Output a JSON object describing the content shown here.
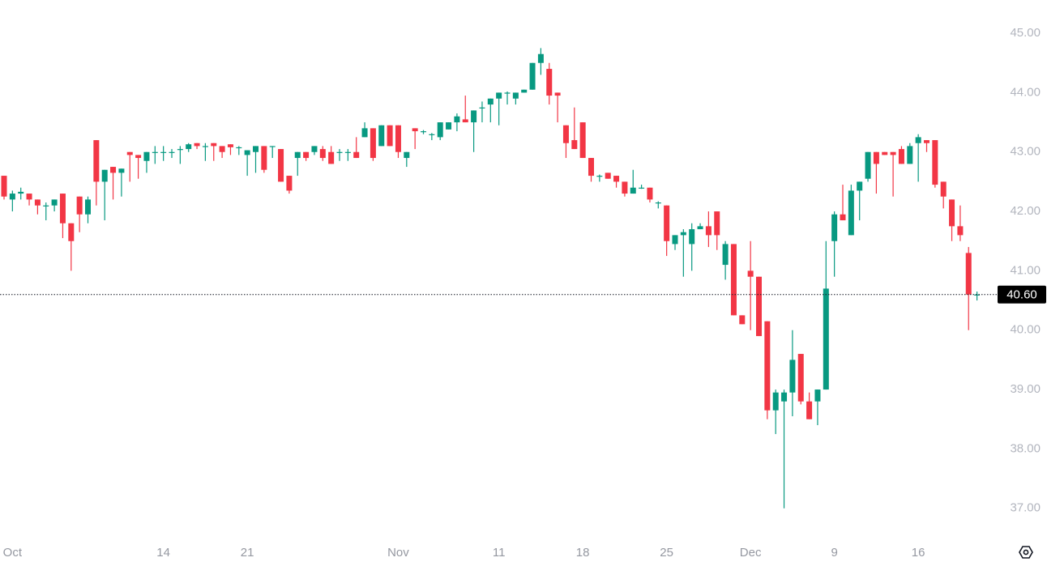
{
  "chart_data": {
    "type": "candlestick",
    "up_color": "#089981",
    "down_color": "#f23645",
    "categories": [
      null,
      "Oct",
      null,
      null,
      null,
      null,
      null,
      null,
      null,
      null,
      null,
      null,
      null,
      null,
      null,
      null,
      null,
      null,
      null,
      "14",
      null,
      null,
      null,
      null,
      null,
      null,
      null,
      null,
      null,
      "21",
      null,
      null,
      null,
      null,
      null,
      null,
      null,
      null,
      null,
      null,
      null,
      null,
      null,
      null,
      null,
      null,
      null,
      "Nov",
      null,
      null,
      null,
      null,
      null,
      null,
      null,
      null,
      null,
      null,
      null,
      "11",
      null,
      null,
      null,
      null,
      null,
      null,
      null,
      null,
      null,
      "18",
      null,
      null,
      null,
      null,
      null,
      null,
      null,
      null,
      null,
      "25",
      null,
      null,
      null,
      null,
      null,
      null,
      null,
      null,
      null,
      "Dec",
      null,
      null,
      null,
      null,
      null,
      null,
      null,
      null,
      null,
      "9",
      null,
      null,
      null,
      null,
      null,
      null,
      null,
      null,
      null,
      "16",
      null,
      null,
      null,
      null,
      null,
      null,
      null
    ],
    "open": [
      42.6,
      42.2,
      42.3,
      42.3,
      42.2,
      42.1,
      42.1,
      42.3,
      41.8,
      42.25,
      41.95,
      43.2,
      42.5,
      42.75,
      42.65,
      43.0,
      42.95,
      42.85,
      43.0,
      43.0,
      43.0,
      43.05,
      43.05,
      43.15,
      43.1,
      43.15,
      43.1,
      43.13,
      43.08,
      42.95,
      43.0,
      43.1,
      43.1,
      43.05,
      42.6,
      42.9,
      43.0,
      43.0,
      43.05,
      43.0,
      43.0,
      43.0,
      43.0,
      43.25,
      43.4,
      43.1,
      43.45,
      43.45,
      42.9,
      43.4,
      43.35,
      43.3,
      43.25,
      43.38,
      43.5,
      43.55,
      43.5,
      43.75,
      43.8,
      43.9,
      44.0,
      43.9,
      44.0,
      44.05,
      44.5,
      44.4,
      44.0,
      43.45,
      43.2,
      43.5,
      42.9,
      42.6,
      42.65,
      42.6,
      42.5,
      42.3,
      42.4,
      42.4,
      42.15,
      42.1,
      41.45,
      41.6,
      41.45,
      41.7,
      41.75,
      42.0,
      41.1,
      41.45,
      40.25,
      41.0,
      40.9,
      40.15,
      38.65,
      38.8,
      38.95,
      39.6,
      38.8,
      38.8,
      39.0,
      41.5,
      41.95,
      41.6,
      42.35,
      42.55,
      43.0,
      43.0,
      43.0,
      43.05,
      42.8,
      43.15,
      43.2,
      43.2,
      42.5,
      42.2,
      41.75,
      41.3,
      40.6
    ],
    "high": [
      42.6,
      42.35,
      42.4,
      42.3,
      42.2,
      42.15,
      42.2,
      42.3,
      41.8,
      42.25,
      42.25,
      43.2,
      42.7,
      42.75,
      42.72,
      43.0,
      42.95,
      43.0,
      43.1,
      43.1,
      43.05,
      43.1,
      43.15,
      43.15,
      43.15,
      43.15,
      43.1,
      43.13,
      43.1,
      43.03,
      43.1,
      43.1,
      43.1,
      43.05,
      42.6,
      43.0,
      43.0,
      43.1,
      43.1,
      43.1,
      43.05,
      43.05,
      43.25,
      43.5,
      43.4,
      43.45,
      43.45,
      43.45,
      43.0,
      43.4,
      43.37,
      43.32,
      43.5,
      43.5,
      43.65,
      43.95,
      43.7,
      43.85,
      43.9,
      44.0,
      44.02,
      44.0,
      44.05,
      44.5,
      44.75,
      44.5,
      44.0,
      43.45,
      43.75,
      43.5,
      42.9,
      42.62,
      42.65,
      42.6,
      42.5,
      42.7,
      42.45,
      42.4,
      42.17,
      42.1,
      41.6,
      41.7,
      41.8,
      41.8,
      42.0,
      42.0,
      41.5,
      41.45,
      40.25,
      41.5,
      40.9,
      40.15,
      39.0,
      39.0,
      40.0,
      39.6,
      38.95,
      39.0,
      41.5,
      42.0,
      42.45,
      42.45,
      42.5,
      43.0,
      43.0,
      43.0,
      43.0,
      43.1,
      43.15,
      43.3,
      43.2,
      43.2,
      42.5,
      42.2,
      42.1,
      41.4,
      40.65
    ],
    "low": [
      42.2,
      42.0,
      42.2,
      42.1,
      41.95,
      41.85,
      42.0,
      41.55,
      41.0,
      41.65,
      41.8,
      42.1,
      41.85,
      42.2,
      42.25,
      42.5,
      42.55,
      42.65,
      42.8,
      42.85,
      42.9,
      42.8,
      43.0,
      43.05,
      42.85,
      42.85,
      42.9,
      42.95,
      42.95,
      42.6,
      42.65,
      42.65,
      42.9,
      42.5,
      42.3,
      42.6,
      42.85,
      42.95,
      42.85,
      42.8,
      42.85,
      42.85,
      42.9,
      43.25,
      42.85,
      43.1,
      43.1,
      42.9,
      42.75,
      43.05,
      43.3,
      43.2,
      43.2,
      43.38,
      43.35,
      43.5,
      43.0,
      43.5,
      43.5,
      43.45,
      43.8,
      43.8,
      44.0,
      44.05,
      44.3,
      43.8,
      43.5,
      42.9,
      43.05,
      42.9,
      42.5,
      42.5,
      42.55,
      42.4,
      42.25,
      42.3,
      42.38,
      42.15,
      42.05,
      41.25,
      41.35,
      40.9,
      41.0,
      41.7,
      41.4,
      41.35,
      40.85,
      40.25,
      40.1,
      40.0,
      39.9,
      38.5,
      38.25,
      37.0,
      38.55,
      38.75,
      38.5,
      38.4,
      39.0,
      40.9,
      41.85,
      41.6,
      41.85,
      42.5,
      42.3,
      42.95,
      42.25,
      42.8,
      42.8,
      42.5,
      43.0,
      42.4,
      42.05,
      41.5,
      41.5,
      40.0,
      40.5
    ],
    "close": [
      42.25,
      42.3,
      42.33,
      42.2,
      42.1,
      42.1,
      42.2,
      41.8,
      41.5,
      41.95,
      42.2,
      42.5,
      42.7,
      42.65,
      42.72,
      42.95,
      42.9,
      43.0,
      43.0,
      43.0,
      43.0,
      43.05,
      43.13,
      43.1,
      43.1,
      43.1,
      43.0,
      43.08,
      43.08,
      43.03,
      43.1,
      42.7,
      43.1,
      42.5,
      42.35,
      43.0,
      42.9,
      43.1,
      42.9,
      42.8,
      43.0,
      43.0,
      42.9,
      43.4,
      42.9,
      43.45,
      43.1,
      43.0,
      43.0,
      43.35,
      43.35,
      43.3,
      43.5,
      43.5,
      43.6,
      43.5,
      43.7,
      43.75,
      43.9,
      44.0,
      44.0,
      44.0,
      44.05,
      44.5,
      44.65,
      43.95,
      43.95,
      43.15,
      43.05,
      42.9,
      42.6,
      42.6,
      42.55,
      42.5,
      42.3,
      42.4,
      42.4,
      42.2,
      42.15,
      41.5,
      41.6,
      41.65,
      41.7,
      41.75,
      41.6,
      41.6,
      41.45,
      40.25,
      40.1,
      40.9,
      39.9,
      38.65,
      38.95,
      38.95,
      39.5,
      38.8,
      38.5,
      39.0,
      40.7,
      41.95,
      41.85,
      42.35,
      42.5,
      43.0,
      42.8,
      42.95,
      42.95,
      42.8,
      43.1,
      43.25,
      43.15,
      42.45,
      42.25,
      41.75,
      41.6,
      40.6,
      40.6
    ],
    "ylim": [
      36.56,
      45.56
    ],
    "yticks": [
      {
        "value": 37,
        "label": "37.00"
      },
      {
        "value": 38,
        "label": "38.00"
      },
      {
        "value": 39,
        "label": "39.00"
      },
      {
        "value": 40,
        "label": "40.00"
      },
      {
        "value": 41,
        "label": "41.00"
      },
      {
        "value": 42,
        "label": "42.00"
      },
      {
        "value": 43,
        "label": "43.00"
      },
      {
        "value": 44,
        "label": "44.00"
      },
      {
        "value": 45,
        "label": "45.00"
      }
    ],
    "last_price": {
      "value": 40.6,
      "label": "40.60"
    }
  }
}
